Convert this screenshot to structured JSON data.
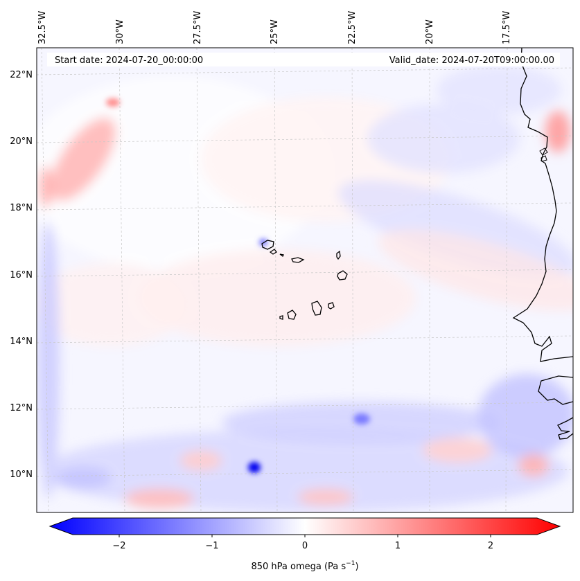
{
  "map": {
    "start_label": "Start date: 2024-07-20_00:00:00",
    "valid_label": "Valid_date: 2024-07-20T09:00:00.00",
    "lon_labels": [
      "32.5°W",
      "30°W",
      "27.5°W",
      "25°W",
      "22.5°W",
      "20°W",
      "17.5°W"
    ],
    "lat_labels": [
      "22°N",
      "20°N",
      "18°N",
      "16°N",
      "14°N",
      "12°N",
      "10°N"
    ],
    "colorbar": {
      "ticks": [
        "−2",
        "−1",
        "0",
        "1",
        "2"
      ],
      "label": "850 hPa omega (Pa s",
      "label_sup": "−1",
      "label_end": ")",
      "colors": [
        "#0000ff",
        "#ffffff",
        "#ff0000"
      ]
    }
  }
}
